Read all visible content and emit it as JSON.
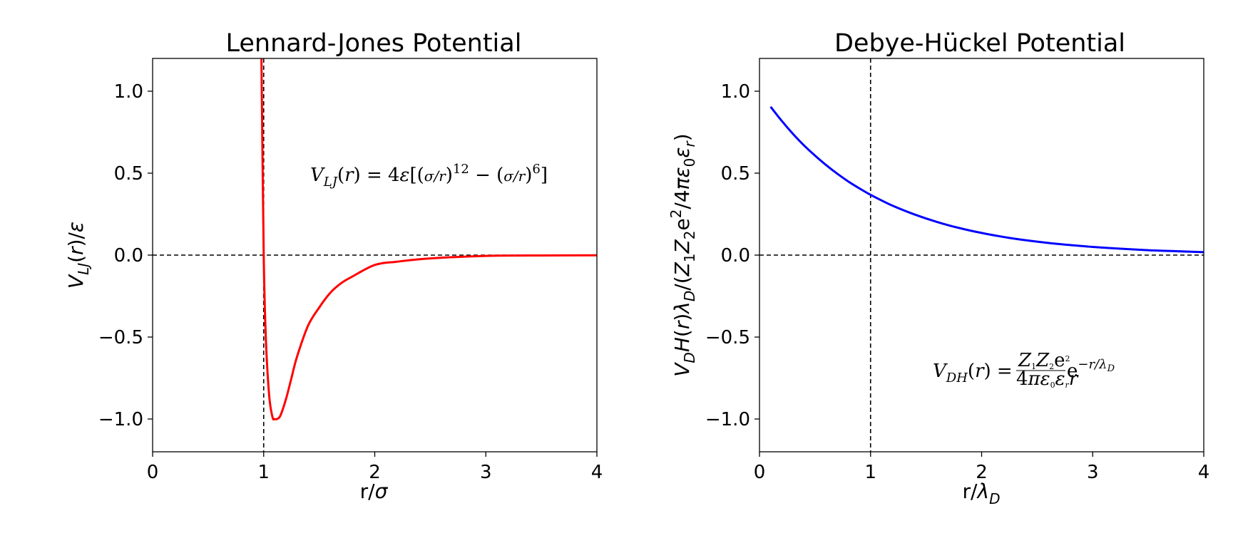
{
  "chart_data": [
    {
      "type": "line",
      "title": "Lennard-Jones Potential",
      "xlabel": "r/σ",
      "ylabel": "V_LJ(r)/ε",
      "xlim": [
        0,
        4
      ],
      "ylim": [
        -1.2,
        1.2
      ],
      "xticks": [
        0,
        1,
        2,
        3,
        4
      ],
      "xtick_labels": [
        "0",
        "1",
        "2",
        "3",
        "4"
      ],
      "yticks": [
        -1.0,
        -0.5,
        0.0,
        0.5,
        1.0
      ],
      "ytick_labels": [
        "−1.0",
        "−0.5",
        "0.0",
        "0.5",
        "1.0"
      ],
      "annotation": "V_LJ(r) = 4ε[(σ/r)^12 − (σ/r)^6]",
      "reference_lines": {
        "vertical_x": 1,
        "horizontal_y": 0,
        "style": "dashed",
        "color": "#000000"
      },
      "grid": false,
      "series": [
        {
          "color": "#ff0000",
          "x": [
            0.98,
            1.0,
            1.02,
            1.05,
            1.08,
            1.1,
            1.12,
            1.15,
            1.2,
            1.25,
            1.3,
            1.4,
            1.5,
            1.6,
            1.7,
            1.8,
            2.0,
            2.2,
            2.5,
            3.0,
            3.5,
            4.0
          ],
          "y": [
            1.2,
            0.0,
            -0.52,
            -0.86,
            -0.99,
            -1.0,
            -1.0,
            -0.98,
            -0.88,
            -0.75,
            -0.62,
            -0.43,
            -0.32,
            -0.23,
            -0.17,
            -0.13,
            -0.06,
            -0.04,
            -0.02,
            -0.005,
            -0.002,
            -0.001
          ]
        }
      ]
    },
    {
      "type": "line",
      "title": "Debye-Hückel Potential",
      "xlabel": "r/λ_D",
      "ylabel": "V_DH(r)λ_D/(Z1Z2e²/4πε0εr)",
      "xlim": [
        0,
        4
      ],
      "ylim": [
        -1.2,
        1.2
      ],
      "xticks": [
        0,
        1,
        2,
        3,
        4
      ],
      "xtick_labels": [
        "0",
        "1",
        "2",
        "3",
        "4"
      ],
      "yticks": [
        -1.0,
        -0.5,
        0.0,
        0.5,
        1.0
      ],
      "ytick_labels": [
        "−1.0",
        "−0.5",
        "0.0",
        "0.5",
        "1.0"
      ],
      "annotation": "V_DH(r) = (Z1Z2e²/4πε0εr r) e^(−r/λ_D)",
      "reference_lines": {
        "vertical_x": 1,
        "horizontal_y": 0,
        "style": "dashed",
        "color": "#000000"
      },
      "grid": false,
      "series": [
        {
          "color": "#0000ff",
          "x": [
            0.1,
            0.2,
            0.3,
            0.4,
            0.5,
            0.6,
            0.7,
            0.8,
            0.9,
            1.0,
            1.2,
            1.4,
            1.6,
            1.8,
            2.0,
            2.25,
            2.5,
            2.75,
            3.0,
            3.25,
            3.5,
            3.75,
            4.0
          ],
          "y": [
            0.905,
            0.819,
            0.741,
            0.67,
            0.607,
            0.549,
            0.497,
            0.449,
            0.407,
            0.368,
            0.301,
            0.247,
            0.202,
            0.165,
            0.135,
            0.105,
            0.082,
            0.064,
            0.05,
            0.039,
            0.03,
            0.024,
            0.018
          ]
        }
      ]
    }
  ]
}
